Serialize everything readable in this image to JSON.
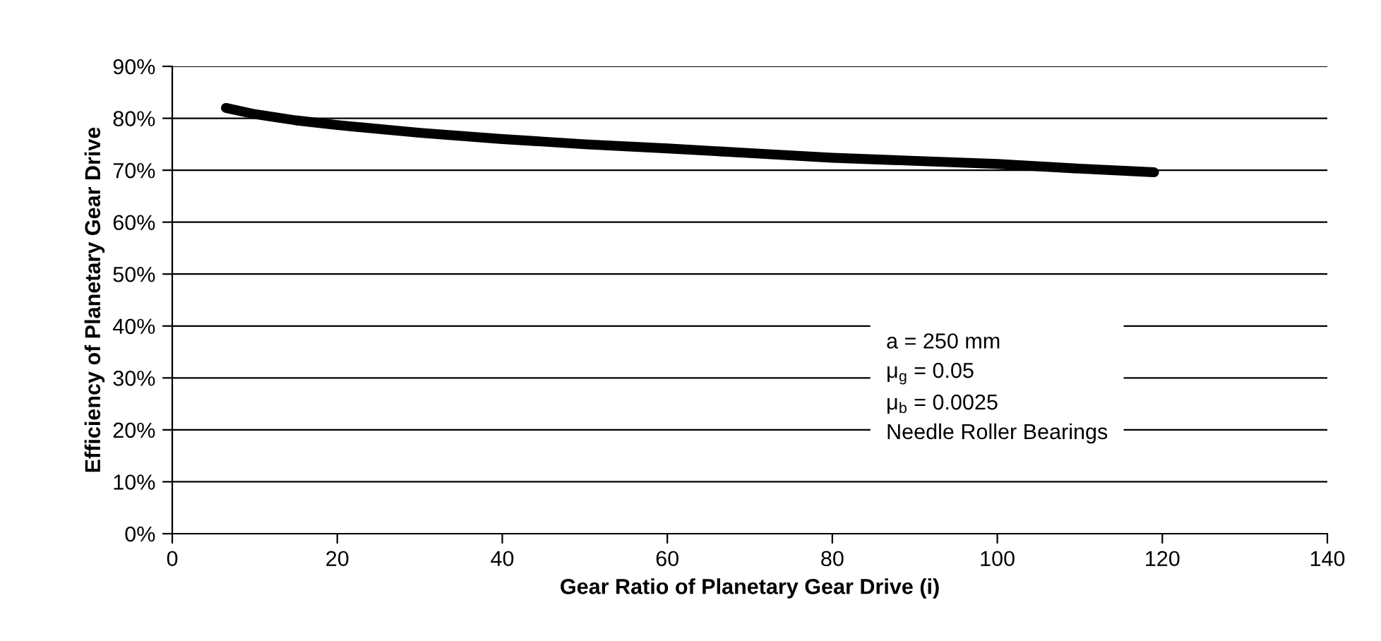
{
  "chart_data": {
    "type": "line",
    "xlabel": "Gear Ratio of Planetary Gear Drive (i)",
    "ylabel": "Efficiency of Planetary Gear Drive",
    "x": [
      6.5,
      10,
      15,
      20,
      30,
      40,
      50,
      60,
      70,
      80,
      90,
      100,
      110,
      119
    ],
    "series": [
      {
        "color": "#000000",
        "values": [
          82,
          80.8,
          79.6,
          78.7,
          77.2,
          76,
          75,
          74.2,
          73.3,
          72.4,
          71.8,
          71.2,
          70.3,
          69.6
        ]
      }
    ],
    "xlim": [
      0,
      140
    ],
    "xticks": [
      0,
      20,
      40,
      60,
      80,
      100,
      120,
      140
    ],
    "ylim": [
      0,
      90
    ],
    "yticks": [
      {
        "value": 0,
        "label": "0%"
      },
      {
        "value": 10,
        "label": "10%"
      },
      {
        "value": 20,
        "label": "20%"
      },
      {
        "value": 30,
        "label": "30%"
      },
      {
        "value": 40,
        "label": "40%"
      },
      {
        "value": 50,
        "label": "50%"
      },
      {
        "value": 60,
        "label": "60%"
      },
      {
        "value": 70,
        "label": "70%"
      },
      {
        "value": 80,
        "label": "80%"
      },
      {
        "value": 90,
        "label": "90%"
      }
    ],
    "grid": "y",
    "legend": false,
    "marker": "none",
    "line_style": "solid",
    "annotations": [
      "a = 250 mm",
      "μ$_{g}$ = 0.05",
      "μ$_{b}$ = 0.0025",
      "Needle Roller Bearings"
    ]
  }
}
